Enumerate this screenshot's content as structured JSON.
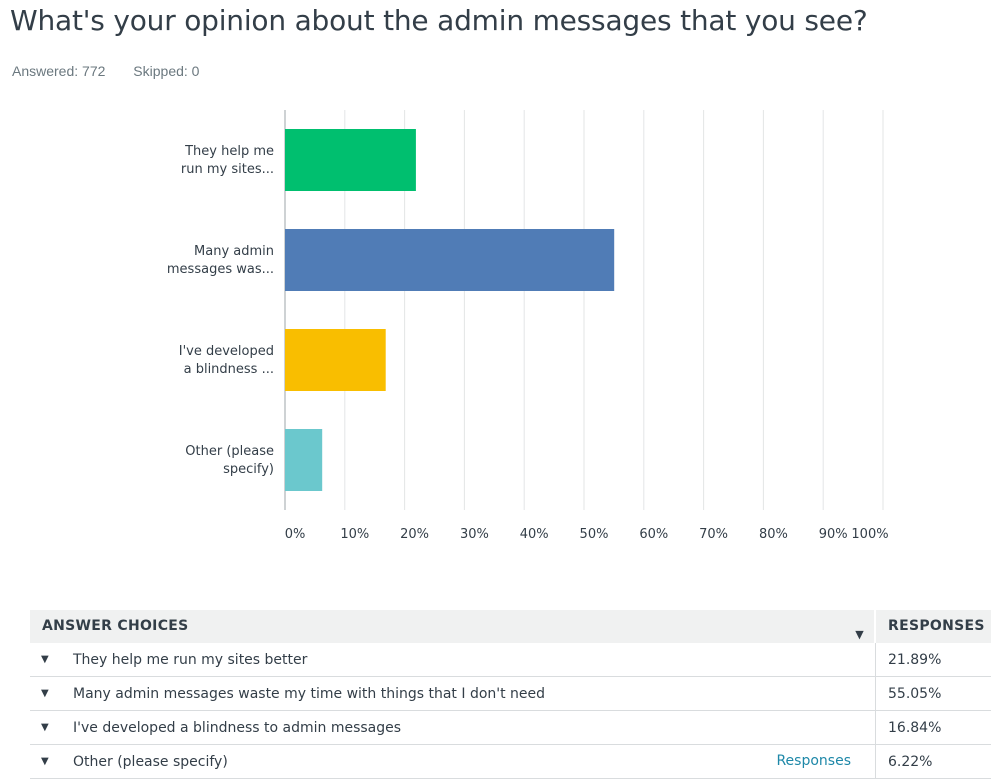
{
  "question": {
    "title": "What's your opinion about the admin messages that you see?",
    "answered": "Answered: 772",
    "skipped": "Skipped: 0"
  },
  "chart_data": {
    "type": "bar",
    "orientation": "horizontal",
    "categories": [
      [
        "They help me",
        "run my sites..."
      ],
      [
        "Many admin",
        "messages was..."
      ],
      [
        "I've developed",
        "a blindness ..."
      ],
      [
        "Other (please",
        "specify)"
      ]
    ],
    "values": [
      21.89,
      55.05,
      16.84,
      6.22
    ],
    "colors": [
      "#00bf6f",
      "#507cb6",
      "#f9be00",
      "#6bc8cd"
    ],
    "xlim": [
      0,
      100
    ],
    "xticks": [
      "0%",
      "10%",
      "20%",
      "30%",
      "40%",
      "50%",
      "60%",
      "70%",
      "80%",
      "90%",
      "100%"
    ],
    "grid": true
  },
  "table": {
    "col_choices": "ANSWER CHOICES",
    "col_responses": "RESPONSES",
    "rows": [
      {
        "choice": "They help me run my sites better",
        "response": "21.89%"
      },
      {
        "choice": "Many admin messages waste my time with things that I don't need",
        "response": "55.05%"
      },
      {
        "choice": "I've developed a blindness to admin messages",
        "response": "16.84%"
      },
      {
        "choice": "Other (please specify)",
        "response": "6.22%",
        "link": "Responses"
      }
    ]
  }
}
